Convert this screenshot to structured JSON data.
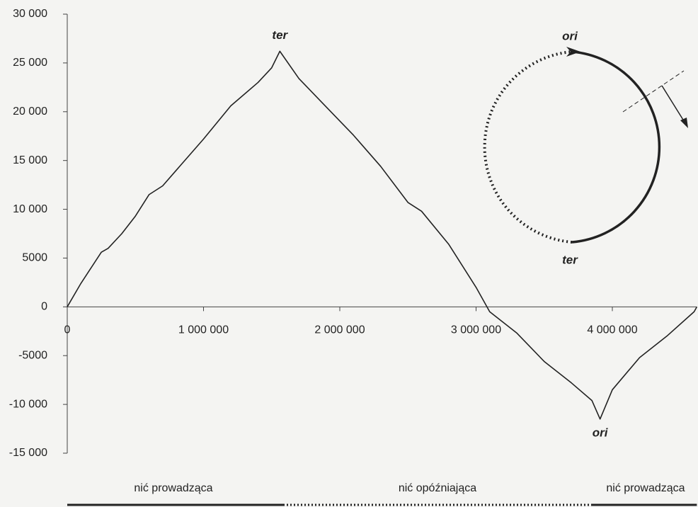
{
  "chart_data": {
    "type": "line",
    "x": [
      0,
      100000,
      250000,
      300000,
      400000,
      500000,
      600000,
      700000,
      800000,
      1000000,
      1200000,
      1400000,
      1500000,
      1560000,
      1700000,
      1900000,
      2100000,
      2300000,
      2500000,
      2600000,
      2800000,
      3000000,
      3100000,
      3300000,
      3500000,
      3700000,
      3850000,
      3910000,
      4000000,
      4200000,
      4400000,
      4600000,
      4620000
    ],
    "values": [
      0,
      2400,
      5600,
      6000,
      7500,
      9300,
      11500,
      12400,
      14000,
      17200,
      20600,
      23000,
      24500,
      26200,
      23400,
      20500,
      17600,
      14400,
      10700,
      9800,
      6400,
      2000,
      -500,
      -2700,
      -5600,
      -7800,
      -9600,
      -11500,
      -8500,
      -5200,
      -3000,
      -500,
      0
    ],
    "color": "#222222",
    "xlim": [
      0,
      4620000
    ],
    "ylim": [
      -15000,
      30000
    ],
    "xticks": [
      0,
      {
        "value": 1000000,
        "label": "1 000 000"
      },
      {
        "value": 2000000,
        "label": "2 000 000"
      },
      {
        "value": 3000000,
        "label": "3 000 000"
      },
      {
        "value": 4000000,
        "label": "4 000 000"
      }
    ],
    "yticks": [
      {
        "value": -15000,
        "label": "-15 000"
      },
      {
        "value": -10000,
        "label": "-10 000"
      },
      -5000,
      0,
      5000,
      {
        "value": 10000,
        "label": "10 000"
      },
      {
        "value": 15000,
        "label": "15 000"
      },
      {
        "value": 20000,
        "label": "20 000"
      },
      {
        "value": 25000,
        "label": "25 000"
      },
      {
        "value": 30000,
        "label": "30 000"
      }
    ],
    "peak_label": "ter",
    "trough_label": "ori",
    "inset": {
      "top_label": "ori",
      "bottom_label": "ter"
    },
    "strands": [
      "nić prowadząca",
      "nić opóźniająca",
      "nić prowadząca"
    ]
  }
}
